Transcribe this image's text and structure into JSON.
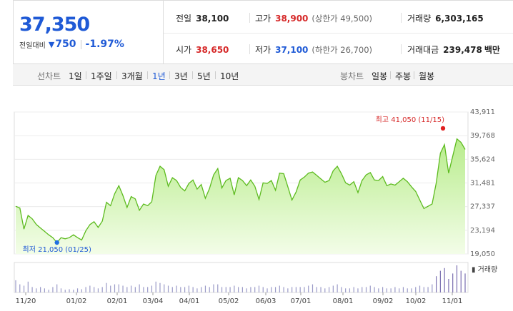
{
  "summary": {
    "price": "37,350",
    "change_label": "전일대비",
    "change_arrow": "▼",
    "change_value": "750",
    "change_pct": "-1.97%",
    "prev_close_label": "전일",
    "prev_close": "38,100",
    "high_label": "고가",
    "high": "38,900",
    "upper_limit": "(상한가 49,500)",
    "volume_label": "거래량",
    "volume": "6,303,165",
    "open_label": "시가",
    "open": "38,650",
    "low_label": "저가",
    "low": "37,100",
    "lower_limit": "(하한가 26,700)",
    "trade_value_label": "거래대금",
    "trade_value": "239,478",
    "trade_value_unit": "백만",
    "colors": {
      "up": "#d62828",
      "down": "#1f5ad6"
    }
  },
  "toolbar": {
    "line_chart_label": "선차트",
    "periods": [
      "1일",
      "1주일",
      "3개월",
      "1년",
      "3년",
      "5년",
      "10년"
    ],
    "active_period": "1년",
    "candle_chart_label": "봉차트",
    "candle_periods": [
      "일봉",
      "주봉",
      "월봉"
    ]
  },
  "chart_data": {
    "type": "area",
    "x_labels": [
      "11/20",
      "01/02",
      "02/01",
      "03/04",
      "04/01",
      "05/02",
      "06/03",
      "07/01",
      "08/01",
      "09/02",
      "10/02",
      "11/01"
    ],
    "y_ticks": [
      "43,911",
      "39,768",
      "35,624",
      "31,481",
      "27,337",
      "23,194",
      "19,050"
    ],
    "ylim": [
      19050,
      43911
    ],
    "values": [
      27400,
      27100,
      23400,
      25800,
      25200,
      24200,
      23600,
      23000,
      22400,
      21900,
      21050,
      21900,
      21700,
      21900,
      22400,
      21900,
      21500,
      23100,
      24200,
      24700,
      23700,
      24800,
      28100,
      27500,
      29600,
      31000,
      29300,
      27200,
      29100,
      28700,
      26700,
      27800,
      27500,
      28200,
      32800,
      34400,
      33800,
      30900,
      32400,
      31900,
      30700,
      30100,
      31400,
      32000,
      30400,
      31200,
      28800,
      30500,
      32900,
      34000,
      30600,
      31900,
      32300,
      29400,
      32400,
      31900,
      31000,
      32000,
      30900,
      28600,
      31500,
      31400,
      31900,
      30200,
      33200,
      33100,
      30800,
      28500,
      29900,
      32000,
      32500,
      33200,
      33400,
      32800,
      32200,
      31600,
      31900,
      33600,
      34400,
      33100,
      31500,
      31100,
      31700,
      29800,
      31900,
      32900,
      33300,
      32000,
      31900,
      32600,
      31000,
      31300,
      31100,
      31700,
      32300,
      31700,
      30800,
      30000,
      28500,
      27000,
      27400,
      27800,
      31500,
      36700,
      38200,
      33200,
      36200,
      39200,
      38600,
      37350
    ],
    "volume": [
      0.45,
      0.3,
      0.25,
      0.4,
      0.2,
      0.15,
      0.2,
      0.15,
      0.1,
      0.2,
      0.3,
      0.15,
      0.1,
      0.12,
      0.1,
      0.15,
      0.12,
      0.2,
      0.25,
      0.2,
      0.15,
      0.2,
      0.35,
      0.25,
      0.3,
      0.3,
      0.25,
      0.2,
      0.25,
      0.2,
      0.3,
      0.2,
      0.2,
      0.25,
      0.4,
      0.35,
      0.3,
      0.25,
      0.2,
      0.25,
      0.2,
      0.2,
      0.25,
      0.2,
      0.15,
      0.2,
      0.25,
      0.2,
      0.3,
      0.3,
      0.2,
      0.2,
      0.2,
      0.25,
      0.2,
      0.2,
      0.15,
      0.2,
      0.2,
      0.25,
      0.2,
      0.15,
      0.2,
      0.2,
      0.25,
      0.2,
      0.15,
      0.2,
      0.2,
      0.2,
      0.2,
      0.25,
      0.3,
      0.2,
      0.2,
      0.15,
      0.2,
      0.25,
      0.3,
      0.2,
      0.15,
      0.15,
      0.2,
      0.15,
      0.2,
      0.2,
      0.25,
      0.2,
      0.15,
      0.2,
      0.15,
      0.15,
      0.2,
      0.15,
      0.2,
      0.15,
      0.15,
      0.2,
      0.25,
      0.2,
      0.2,
      0.3,
      0.6,
      0.8,
      0.9,
      0.5,
      0.7,
      1.0,
      0.8,
      0.7
    ],
    "high_annotation": "최고 41,050 (11/15)",
    "low_annotation": "최저 21,050 (01/25)",
    "volume_label": "거래량",
    "colors": {
      "line": "#5dbb1f",
      "fill_top": "#b8ec8c",
      "fill_bottom": "#f3fde8",
      "volume": "#9b9bc8",
      "volume_recent": "#7a6fb0",
      "high_dot": "#e01f1f",
      "low_dot": "#1f6fe0"
    }
  }
}
